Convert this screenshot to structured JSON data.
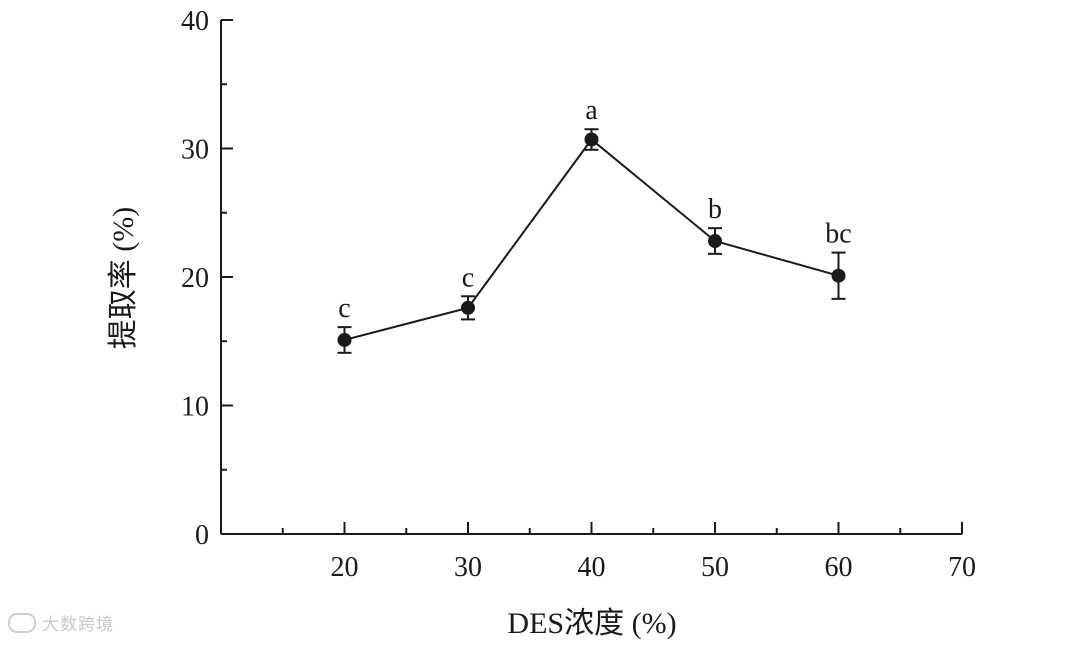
{
  "chart_data": {
    "type": "line",
    "xlabel": "DES浓度 (%)",
    "ylabel": "提取率 (%)",
    "xlim": [
      10,
      70
    ],
    "ylim": [
      0,
      40
    ],
    "x_ticks": [
      20,
      30,
      40,
      50,
      60,
      70
    ],
    "y_ticks": [
      0,
      10,
      20,
      30,
      40
    ],
    "x_minor_step": 5,
    "y_minor_step": 5,
    "grid": false,
    "series": [
      {
        "x": [
          20,
          30,
          40,
          50,
          60
        ],
        "y": [
          15.1,
          17.6,
          30.7,
          22.8,
          20.1
        ],
        "error": [
          1.0,
          0.9,
          0.8,
          1.0,
          1.8
        ],
        "labels": [
          "c",
          "c",
          "a",
          "b",
          "bc"
        ],
        "color": "#1a1a1a",
        "marker": "circle"
      }
    ]
  },
  "watermark": {
    "text": "大数跨境",
    "icon": "watermark-logo-icon"
  }
}
